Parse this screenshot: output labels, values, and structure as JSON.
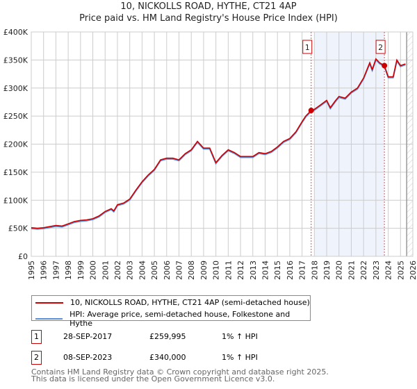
{
  "title": "10, NICKOLLS ROAD, HYTHE, CT21 4AP",
  "subtitle": "Price paid vs. HM Land Registry's House Price Index (HPI)",
  "colors": {
    "property": "#cc0000",
    "hpi": "#5b8fd6",
    "shade": "#eef3fc",
    "grid": "#cccccc"
  },
  "chart_data": {
    "type": "line",
    "title": "10, NICKOLLS ROAD, HYTHE, CT21 4AP — Price paid vs. HM Land Registry's House Price Index (HPI)",
    "xlim": [
      1995,
      2026
    ],
    "ylim": [
      0,
      400000
    ],
    "x_ticks": [
      "1995",
      "1996",
      "1997",
      "1998",
      "1999",
      "2000",
      "2001",
      "2002",
      "2003",
      "2004",
      "2005",
      "2006",
      "2007",
      "2008",
      "2009",
      "2010",
      "2011",
      "2012",
      "2013",
      "2014",
      "2015",
      "2016",
      "2017",
      "2018",
      "2019",
      "2020",
      "2021",
      "2022",
      "2023",
      "2024",
      "2025",
      "2026"
    ],
    "y_ticks": [
      {
        "v": 0,
        "label": "£0"
      },
      {
        "v": 50000,
        "label": "£50K"
      },
      {
        "v": 100000,
        "label": "£100K"
      },
      {
        "v": 150000,
        "label": "£150K"
      },
      {
        "v": 200000,
        "label": "£200K"
      },
      {
        "v": 250000,
        "label": "£250K"
      },
      {
        "v": 300000,
        "label": "£300K"
      },
      {
        "v": 350000,
        "label": "£350K"
      },
      {
        "v": 400000,
        "label": "£400K"
      }
    ],
    "grid": true,
    "series": [
      {
        "name": "10, NICKOLLS ROAD, HYTHE, CT21 4AP (semi-detached house)",
        "x": [
          1995,
          1995.5,
          1996,
          1996.5,
          1997,
          1997.5,
          1998,
          1998.5,
          1999,
          1999.5,
          2000,
          2000.5,
          2001,
          2001.5,
          2001.7,
          2002,
          2002.5,
          2003,
          2003.5,
          2004,
          2004.5,
          2005,
          2005.5,
          2006,
          2006.5,
          2007,
          2007.5,
          2008,
          2008.5,
          2009,
          2009.5,
          2010,
          2010.5,
          2011,
          2011.5,
          2012,
          2012.5,
          2013,
          2013.5,
          2014,
          2014.5,
          2015,
          2015.5,
          2016,
          2016.5,
          2017,
          2017.3,
          2017.74,
          2018,
          2018.5,
          2019,
          2019.3,
          2019.7,
          2020,
          2020.5,
          2021,
          2021.5,
          2022,
          2022.5,
          2022.7,
          2023,
          2023.3,
          2023.69,
          2024,
          2024.4,
          2024.7,
          2025,
          2025.4
        ],
        "y": [
          51000,
          50000,
          51000,
          53000,
          55000,
          54000,
          58000,
          62000,
          64000,
          65000,
          67000,
          72000,
          80000,
          85000,
          81000,
          92000,
          95000,
          102000,
          118000,
          133000,
          145000,
          155000,
          172000,
          175000,
          175000,
          172000,
          183000,
          190000,
          205000,
          193000,
          193000,
          167000,
          180000,
          190000,
          185000,
          178000,
          178000,
          178000,
          185000,
          183000,
          187000,
          195000,
          205000,
          210000,
          222000,
          240000,
          250000,
          259995,
          262000,
          270000,
          278000,
          265000,
          277000,
          285000,
          282000,
          293000,
          300000,
          318000,
          345000,
          333000,
          352000,
          345000,
          340000,
          320000,
          320000,
          350000,
          340000,
          343000
        ]
      },
      {
        "name": "HPI: Average price, semi-detached house, Folkestone and Hythe",
        "offset_from_property": -1500
      }
    ],
    "sales": [
      {
        "label": "1",
        "x": 2017.74,
        "y": 259995
      },
      {
        "label": "2",
        "x": 2023.69,
        "y": 340000
      }
    ],
    "shaded_range": [
      2018,
      2023.69
    ],
    "hatched_from": 2025.5,
    "legend": "below"
  },
  "legend": {
    "property": "10, NICKOLLS ROAD, HYTHE, CT21 4AP (semi-detached house)",
    "hpi": "HPI: Average price, semi-detached house, Folkestone and Hythe"
  },
  "transactions": [
    {
      "num": "1",
      "date": "28-SEP-2017",
      "price": "£259,995",
      "hpi": "1% ↑ HPI"
    },
    {
      "num": "2",
      "date": "08-SEP-2023",
      "price": "£340,000",
      "hpi": "1% ↑ HPI"
    }
  ],
  "footer": {
    "line1": "Contains HM Land Registry data © Crown copyright and database right 2025.",
    "line2": "This data is licensed under the Open Government Licence v3.0."
  }
}
